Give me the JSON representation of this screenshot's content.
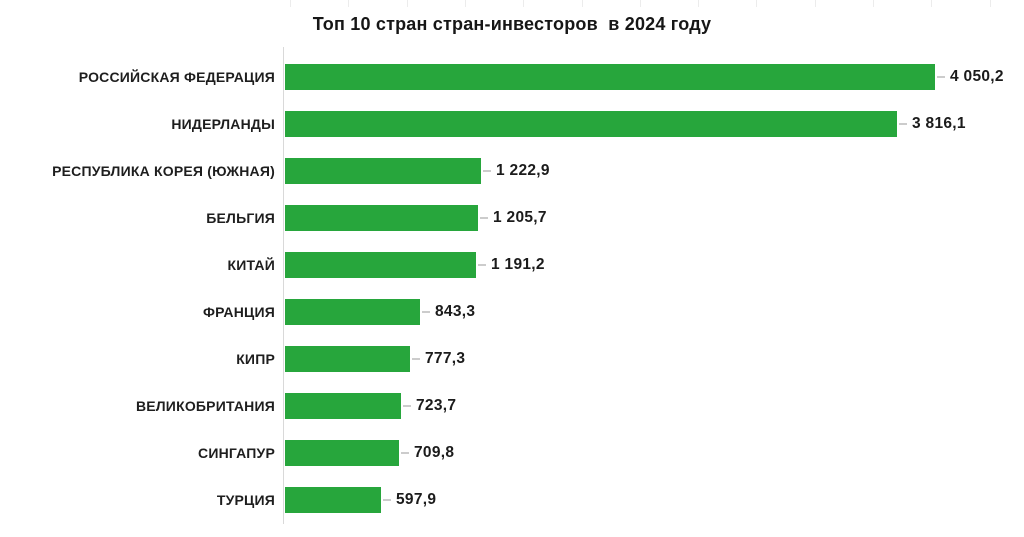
{
  "title": "Топ 10 стран стран-инвесторов  в 2024 году",
  "colors": {
    "bar": "#27A63C",
    "title_text": "#161616",
    "label_text": "#1e1e1e",
    "axis_line": "#d9d9d9",
    "leader_dash": "#cccccc",
    "top_tick": "#ececec",
    "background": "#ffffff"
  },
  "chart_data": {
    "type": "bar",
    "orientation": "horizontal",
    "title": "Топ 10 стран стран-инвесторов  в 2024 году",
    "categories": [
      "РОССИЙСКАЯ ФЕДЕРАЦИЯ",
      "НИДЕРЛАНДЫ",
      "РЕСПУБЛИКА КОРЕЯ (ЮЖНАЯ)",
      "БЕЛЬГИЯ",
      "КИТАЙ",
      "ФРАНЦИЯ",
      "КИПР",
      "ВЕЛИКОБРИТАНИЯ",
      "СИНГАПУР",
      "ТУРЦИЯ"
    ],
    "values": [
      4050.2,
      3816.1,
      1222.9,
      1205.7,
      1191.2,
      843.3,
      777.3,
      723.7,
      709.8,
      597.9
    ],
    "value_labels": [
      "4 050,2",
      "3 816,1",
      "1 222,9",
      "1 205,7",
      "1 191,2",
      "843,3",
      "777,3",
      "723,7",
      "709,8",
      "597,9"
    ],
    "xlabel": "",
    "ylabel": "",
    "xlim": [
      0,
      4050.2
    ],
    "grid": false,
    "legend": false,
    "sorted": "descending"
  }
}
